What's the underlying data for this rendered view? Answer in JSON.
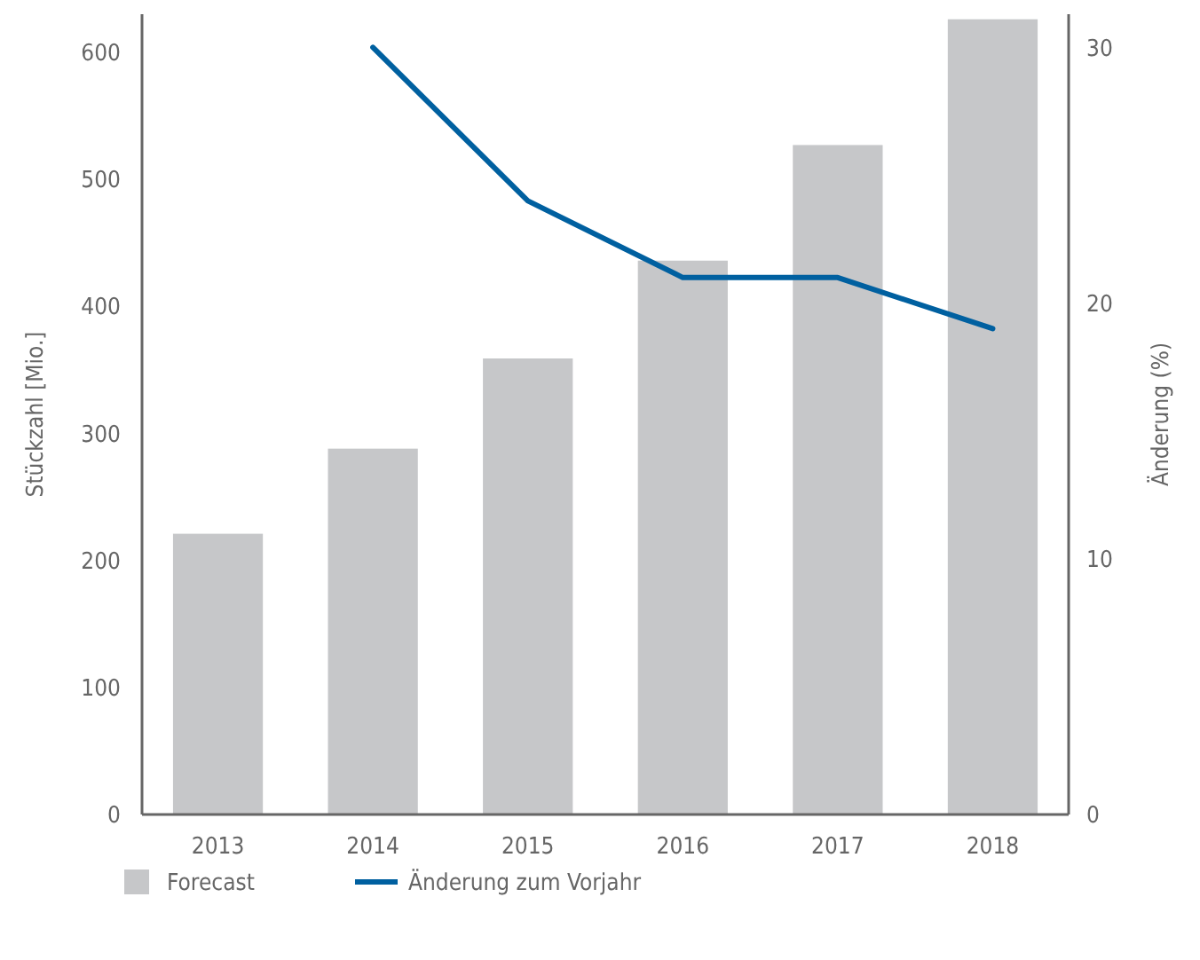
{
  "chart_data": {
    "type": "bar",
    "categories": [
      "2013",
      "2014",
      "2015",
      "2016",
      "2017",
      "2018"
    ],
    "ylabel": "Stückzahl [Mio.]",
    "y2label": "Änderung (%)",
    "series": [
      {
        "name": "Forecast",
        "color": "#c6c7c9",
        "values": [
          221,
          288,
          359,
          436,
          527,
          626
        ]
      },
      {
        "name": "Änderung zum Vorjahr",
        "type": "line",
        "axis": "y2",
        "color": "#0060a0",
        "values": [
          null,
          30,
          24,
          21,
          21,
          19
        ]
      }
    ],
    "ylim": [
      0,
      630
    ],
    "yticks": [
      0,
      100,
      200,
      300,
      400,
      500,
      600
    ],
    "y2lim": [
      0,
      31.3
    ],
    "y2ticks": [
      0,
      10,
      20,
      30
    ],
    "grid": false,
    "legend": "bottom",
    "marker": "none",
    "line_style": "solid"
  }
}
